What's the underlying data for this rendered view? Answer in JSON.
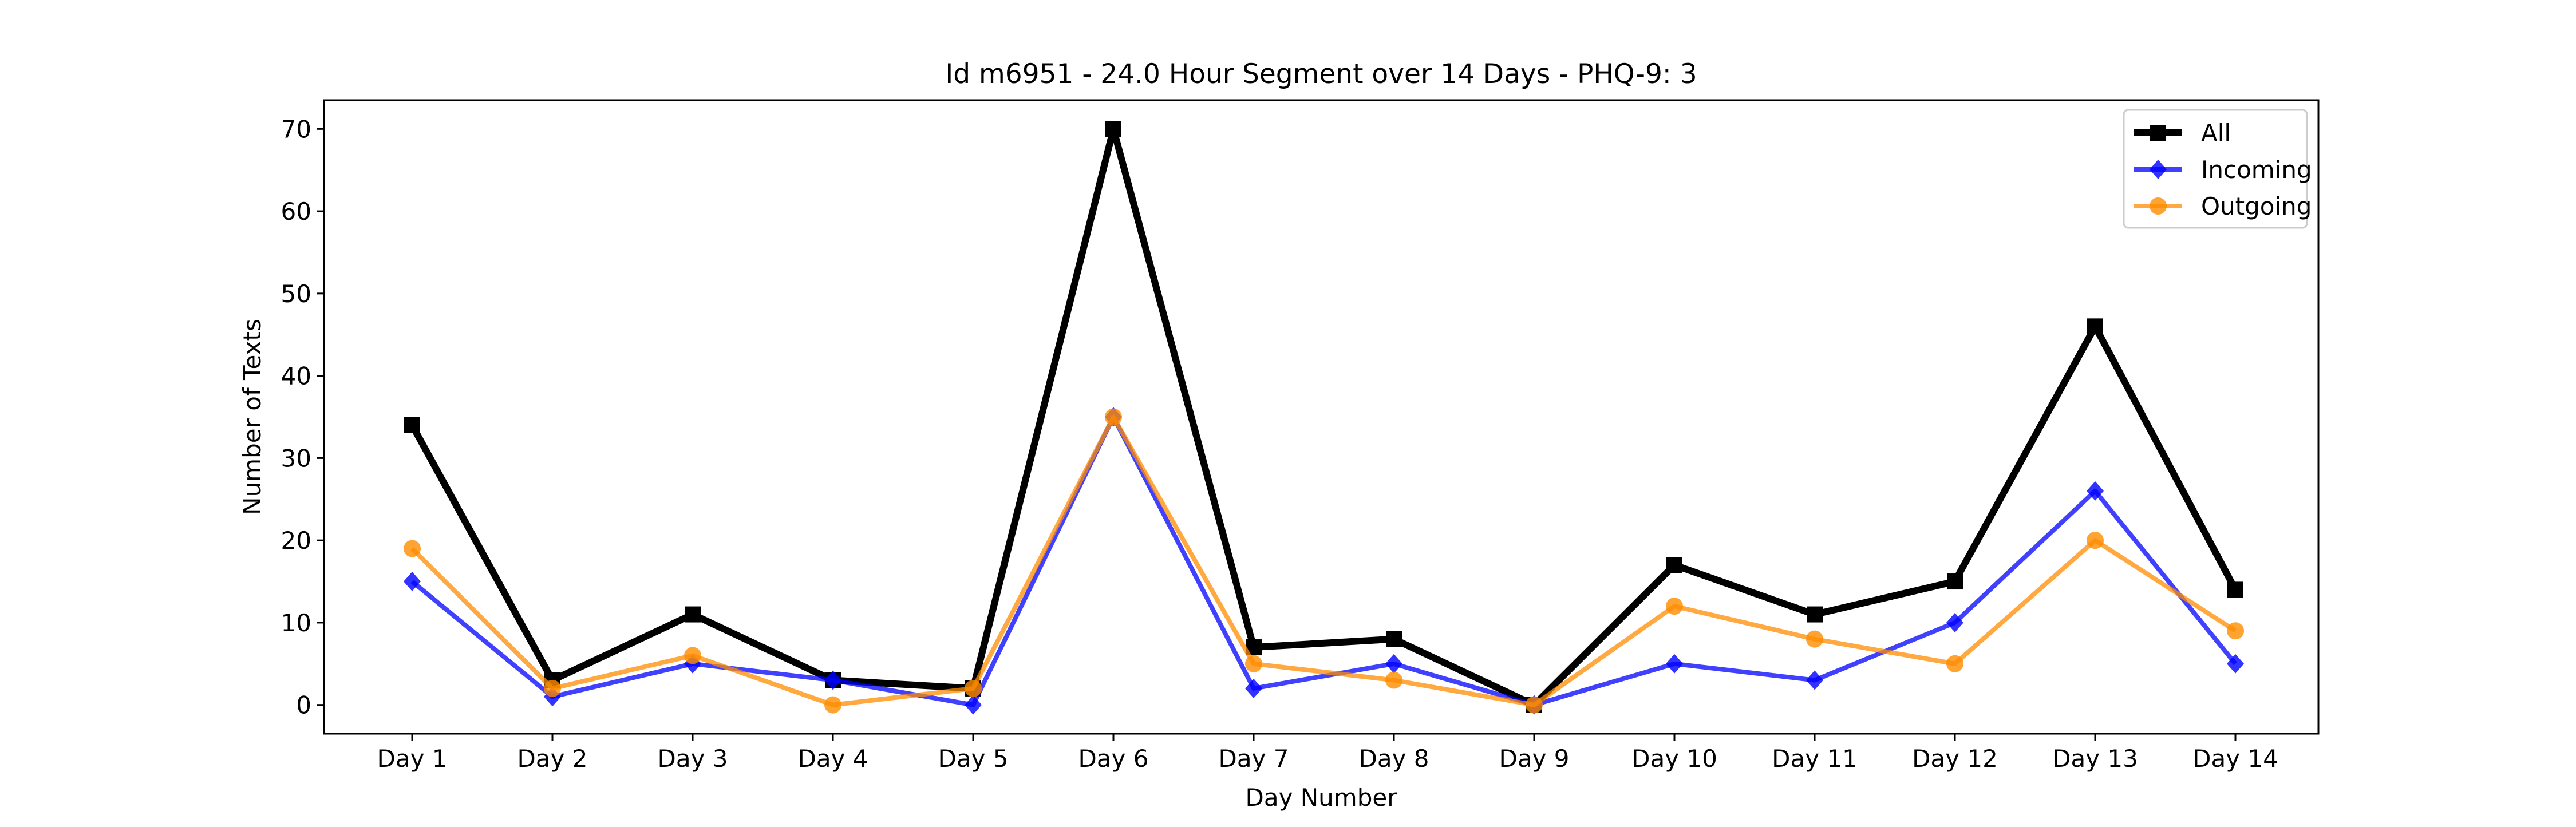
{
  "chart_data": {
    "type": "line",
    "title": "Id m6951 - 24.0 Hour Segment over 14 Days - PHQ-9: 3",
    "xlabel": "Day Number",
    "ylabel": "Number of Texts",
    "categories": [
      "Day 1",
      "Day 2",
      "Day 3",
      "Day 4",
      "Day 5",
      "Day 6",
      "Day 7",
      "Day 8",
      "Day 9",
      "Day 10",
      "Day 11",
      "Day 12",
      "Day 13",
      "Day 14"
    ],
    "ylim": [
      -3.5,
      73.5
    ],
    "yticks": [
      0,
      10,
      20,
      30,
      40,
      50,
      60,
      70
    ],
    "grid": false,
    "legend_position": "top-right",
    "series": [
      {
        "name": "All",
        "color": "#000000",
        "marker": "square",
        "values": [
          34,
          3,
          11,
          3,
          2,
          70,
          7,
          8,
          0,
          17,
          11,
          15,
          46,
          14
        ]
      },
      {
        "name": "Incoming",
        "color": "#0000ff",
        "marker": "diamond",
        "values": [
          15,
          1,
          5,
          3,
          0,
          35,
          2,
          5,
          0,
          5,
          3,
          10,
          26,
          5
        ]
      },
      {
        "name": "Outgoing",
        "color": "#ff8c00",
        "marker": "circle",
        "values": [
          19,
          2,
          6,
          0,
          2,
          35,
          5,
          3,
          0,
          12,
          8,
          5,
          20,
          9
        ]
      }
    ]
  }
}
